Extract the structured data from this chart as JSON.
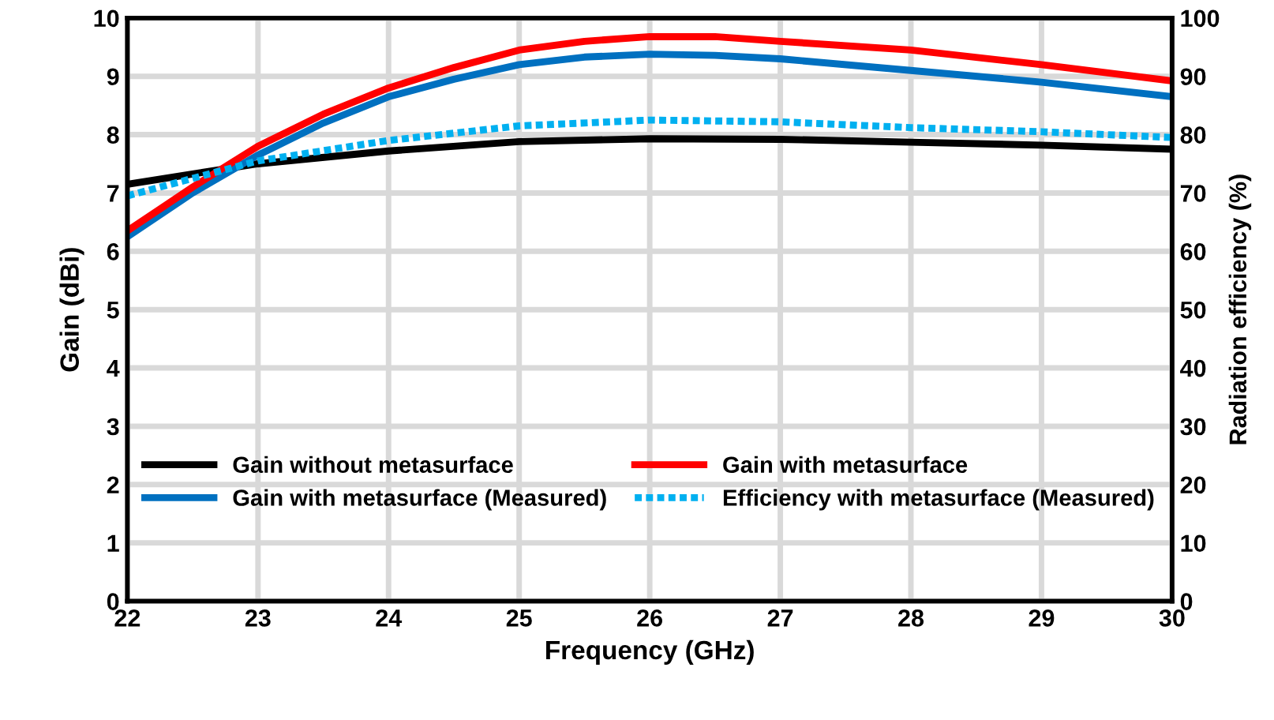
{
  "chart_data": {
    "type": "line",
    "xlabel": "Frequency (GHz)",
    "ylabel": "Gain (dBi)",
    "y2label": "Radiation efficiency (%)",
    "xlim": [
      22,
      30
    ],
    "xticks": [
      22,
      23,
      24,
      25,
      26,
      27,
      28,
      29,
      30
    ],
    "ylim": [
      0,
      10
    ],
    "yticks": [
      0,
      1,
      2,
      3,
      4,
      5,
      6,
      7,
      8,
      9,
      10
    ],
    "y2lim": [
      0,
      100
    ],
    "y2ticks": [
      0,
      10,
      20,
      30,
      40,
      50,
      60,
      70,
      80,
      90,
      100
    ],
    "grid": true,
    "legend": "bottom",
    "marker": "none",
    "series": [
      {
        "name": "Gain without metasurface",
        "color": "#000000",
        "x": [
          22,
          23,
          24,
          25,
          26,
          27,
          28,
          29,
          30
        ],
        "values": [
          7.15,
          7.5,
          7.72,
          7.88,
          7.93,
          7.92,
          7.87,
          7.82,
          7.75
        ]
      },
      {
        "name": "Gain with metasurface (Measured)",
        "color": "#0070c0",
        "x": [
          22,
          22.5,
          23,
          23.5,
          24,
          24.5,
          25,
          25.5,
          26,
          26.5,
          27,
          28,
          29,
          30
        ],
        "values": [
          6.25,
          7.0,
          7.65,
          8.2,
          8.65,
          8.95,
          9.2,
          9.33,
          9.38,
          9.36,
          9.3,
          9.1,
          8.9,
          8.65
        ]
      },
      {
        "name": "Gain with metasurface",
        "color": "#ff0000",
        "x": [
          22,
          22.5,
          23,
          23.5,
          24,
          24.5,
          25,
          25.5,
          26,
          26.5,
          27,
          28,
          29,
          30
        ],
        "values": [
          6.35,
          7.1,
          7.8,
          8.35,
          8.8,
          9.15,
          9.45,
          9.6,
          9.68,
          9.68,
          9.6,
          9.45,
          9.2,
          8.92
        ]
      },
      {
        "name": "Efficiency with metasurface (Measured)",
        "color": "#00b0f0",
        "axis": "y2",
        "line_style": "dotted",
        "x": [
          22,
          23,
          24,
          25,
          26,
          27,
          28,
          29,
          30
        ],
        "values": [
          69.5,
          75.5,
          79,
          81.5,
          82.5,
          82.2,
          81.2,
          80.5,
          79.5
        ]
      }
    ]
  }
}
